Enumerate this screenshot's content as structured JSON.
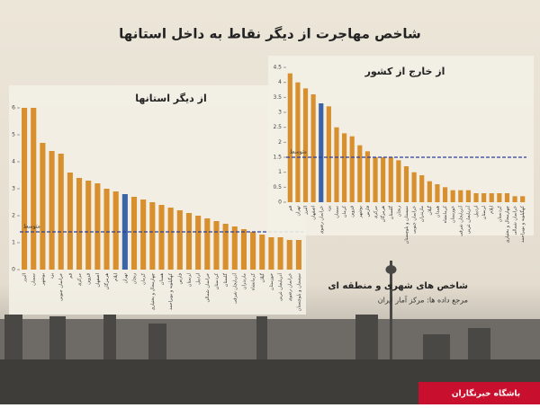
{
  "title": "شاخص مهاجرت از دیگر نقاط به داخل استانها",
  "branding": {
    "name": "شاخص های شهری و منطقه ای",
    "source": "مرجع داده ها: مرکز آمار ایران",
    "agency": "باشگاه خبرنگاران"
  },
  "chart_data": [
    {
      "type": "bar",
      "title": "از دیگر استانها",
      "categories": [
        "البرز",
        "سمنان",
        "بوشهر",
        "یزد",
        "خراسان جنوبی",
        "قم",
        "مرکزی",
        "قزوین",
        "اصفهان",
        "هرمزگان",
        "ایلام",
        "تهران",
        "زنجان",
        "کرمان",
        "چهارمحال و بختیاری",
        "همدان",
        "کهگیلویه و بویراحمد",
        "فارس",
        "لرستان",
        "اردبیل",
        "خراسان شمالی",
        "کردستان",
        "گلستان",
        "آذربایجان شرقی",
        "مازندران",
        "کرمانشاه",
        "گیلان",
        "خوزستان",
        "آذربایجان غربی",
        "خراسان رضوی",
        "سیستان و بلوچستان"
      ],
      "values": [
        6,
        6,
        4.7,
        4.4,
        4.3,
        3.6,
        3.4,
        3.3,
        3.2,
        3.0,
        2.9,
        2.8,
        2.7,
        2.6,
        2.5,
        2.4,
        2.3,
        2.2,
        2.1,
        2.0,
        1.9,
        1.8,
        1.7,
        1.6,
        1.5,
        1.4,
        1.3,
        1.2,
        1.2,
        1.1,
        1.1
      ],
      "bar_colors": [
        "#d8902e",
        "#d8902e",
        "#d8902e",
        "#d8902e",
        "#d8902e",
        "#d8902e",
        "#d8902e",
        "#d8902e",
        "#d8902e",
        "#d8902e",
        "#d8902e",
        "#3b63a6",
        "#d8902e",
        "#d8902e",
        "#d8902e",
        "#d8902e",
        "#d8902e",
        "#d8902e",
        "#d8902e",
        "#d8902e",
        "#d8902e",
        "#d8902e",
        "#d8902e",
        "#d8902e",
        "#d8902e",
        "#d8902e",
        "#d8902e",
        "#d8902e",
        "#d8902e",
        "#d8902e",
        "#d8902e"
      ],
      "average": 1.4,
      "average_label": "متوسط",
      "average_color": "#2b3f9a",
      "ylim": [
        0,
        6
      ],
      "yticks": [
        0,
        1,
        2,
        3,
        4,
        5,
        6
      ]
    },
    {
      "type": "bar",
      "title": "از خارج از کشور",
      "categories": [
        "قم",
        "تهران",
        "البرز",
        "اصفهان",
        "خراسان رضوی",
        "یزد",
        "سمنان",
        "کرمان",
        "قزوین",
        "بوشهر",
        "فارس",
        "مرکزی",
        "هرمزگان",
        "گلستان",
        "زنجان",
        "سیستان و بلوچستان",
        "خراسان جنوبی",
        "مازندران",
        "گیلان",
        "همدان",
        "کرمانشاه",
        "خوزستان",
        "آذربایجان شرقی",
        "آذربایجان غربی",
        "اردبیل",
        "لرستان",
        "ایلام",
        "کردستان",
        "چهارمحال و بختیاری",
        "خراسان شمالی",
        "کهگیلویه و بویراحمد"
      ],
      "values": [
        4.3,
        4.0,
        3.8,
        3.6,
        3.3,
        3.2,
        2.5,
        2.3,
        2.2,
        1.9,
        1.7,
        1.5,
        1.5,
        1.5,
        1.4,
        1.2,
        1.0,
        0.9,
        0.7,
        0.6,
        0.5,
        0.4,
        0.4,
        0.4,
        0.3,
        0.3,
        0.3,
        0.3,
        0.3,
        0.2,
        0.2
      ],
      "bar_colors": [
        "#d8902e",
        "#d8902e",
        "#d8902e",
        "#d8902e",
        "#3b63a6",
        "#d8902e",
        "#d8902e",
        "#d8902e",
        "#d8902e",
        "#d8902e",
        "#d8902e",
        "#d8902e",
        "#d8902e",
        "#d8902e",
        "#d8902e",
        "#d8902e",
        "#d8902e",
        "#d8902e",
        "#d8902e",
        "#d8902e",
        "#d8902e",
        "#d8902e",
        "#d8902e",
        "#d8902e",
        "#d8902e",
        "#d8902e",
        "#d8902e",
        "#d8902e",
        "#d8902e",
        "#d8902e",
        "#d8902e"
      ],
      "average": 1.5,
      "average_label": "متوسط",
      "average_color": "#2b3f9a",
      "ylim": [
        0,
        4.5
      ],
      "yticks": [
        0,
        0.5,
        1,
        1.5,
        2,
        2.5,
        3,
        3.5,
        4,
        4.5
      ]
    }
  ]
}
